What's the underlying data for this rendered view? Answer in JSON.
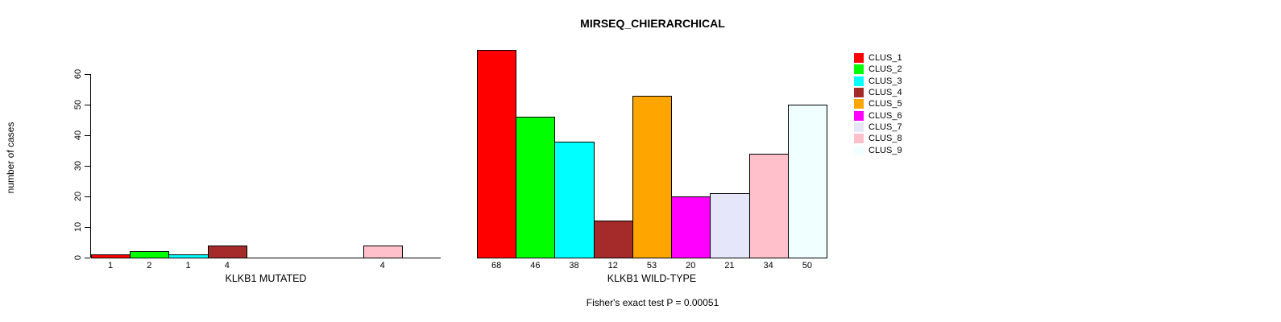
{
  "title": "MIRSEQ_CHIERARCHICAL",
  "footer": "Fisher's exact test P = 0.00051",
  "y_axis": {
    "label": "number of cases",
    "ticks": [
      0,
      10,
      20,
      30,
      40,
      50,
      60
    ],
    "ylim": [
      0,
      60
    ]
  },
  "legend": {
    "position": "right",
    "items": [
      {
        "label": "CLUS_1",
        "color": "#FF0000"
      },
      {
        "label": "CLUS_2",
        "color": "#00FF00"
      },
      {
        "label": "CLUS_3",
        "color": "#00FFFF"
      },
      {
        "label": "CLUS_4",
        "color": "#A52A2A"
      },
      {
        "label": "CLUS_5",
        "color": "#FFA500"
      },
      {
        "label": "CLUS_6",
        "color": "#FF00FF"
      },
      {
        "label": "CLUS_7",
        "color": "#E6E6FA"
      },
      {
        "label": "CLUS_8",
        "color": "#FFC0CB"
      },
      {
        "label": "CLUS_9",
        "color": "#F0FFFF"
      }
    ]
  },
  "chart_data": [
    {
      "type": "bar",
      "title": "MIRSEQ_CHIERARCHICAL",
      "xlabel": "KLKB1 MUTATED",
      "ylabel": "number of cases",
      "ylim": [
        0,
        60
      ],
      "grid": false,
      "categories": [
        "CLUS_1",
        "CLUS_2",
        "CLUS_3",
        "CLUS_4",
        "CLUS_5",
        "CLUS_6",
        "CLUS_7",
        "CLUS_8",
        "CLUS_9"
      ],
      "values": [
        1,
        2,
        1,
        4,
        0,
        0,
        0,
        4,
        0
      ],
      "bar_labels": [
        "1",
        "2",
        "1",
        "4",
        "",
        "",
        "",
        "4",
        ""
      ],
      "colors": [
        "#FF0000",
        "#00FF00",
        "#00FFFF",
        "#A52A2A",
        "#FFA500",
        "#FF00FF",
        "#E6E6FA",
        "#FFC0CB",
        "#F0FFFF"
      ]
    },
    {
      "type": "bar",
      "title": "MIRSEQ_CHIERARCHICAL",
      "xlabel": "KLKB1 WILD-TYPE",
      "ylabel": "number of cases",
      "ylim": [
        0,
        60
      ],
      "grid": false,
      "categories": [
        "CLUS_1",
        "CLUS_2",
        "CLUS_3",
        "CLUS_4",
        "CLUS_5",
        "CLUS_6",
        "CLUS_7",
        "CLUS_8",
        "CLUS_9"
      ],
      "values": [
        68,
        46,
        38,
        12,
        53,
        20,
        21,
        34,
        50
      ],
      "bar_labels": [
        "68",
        "46",
        "38",
        "12",
        "53",
        "20",
        "21",
        "34",
        "50"
      ],
      "colors": [
        "#FF0000",
        "#00FF00",
        "#00FFFF",
        "#A52A2A",
        "#FFA500",
        "#FF00FF",
        "#E6E6FA",
        "#FFC0CB",
        "#F0FFFF"
      ]
    }
  ]
}
